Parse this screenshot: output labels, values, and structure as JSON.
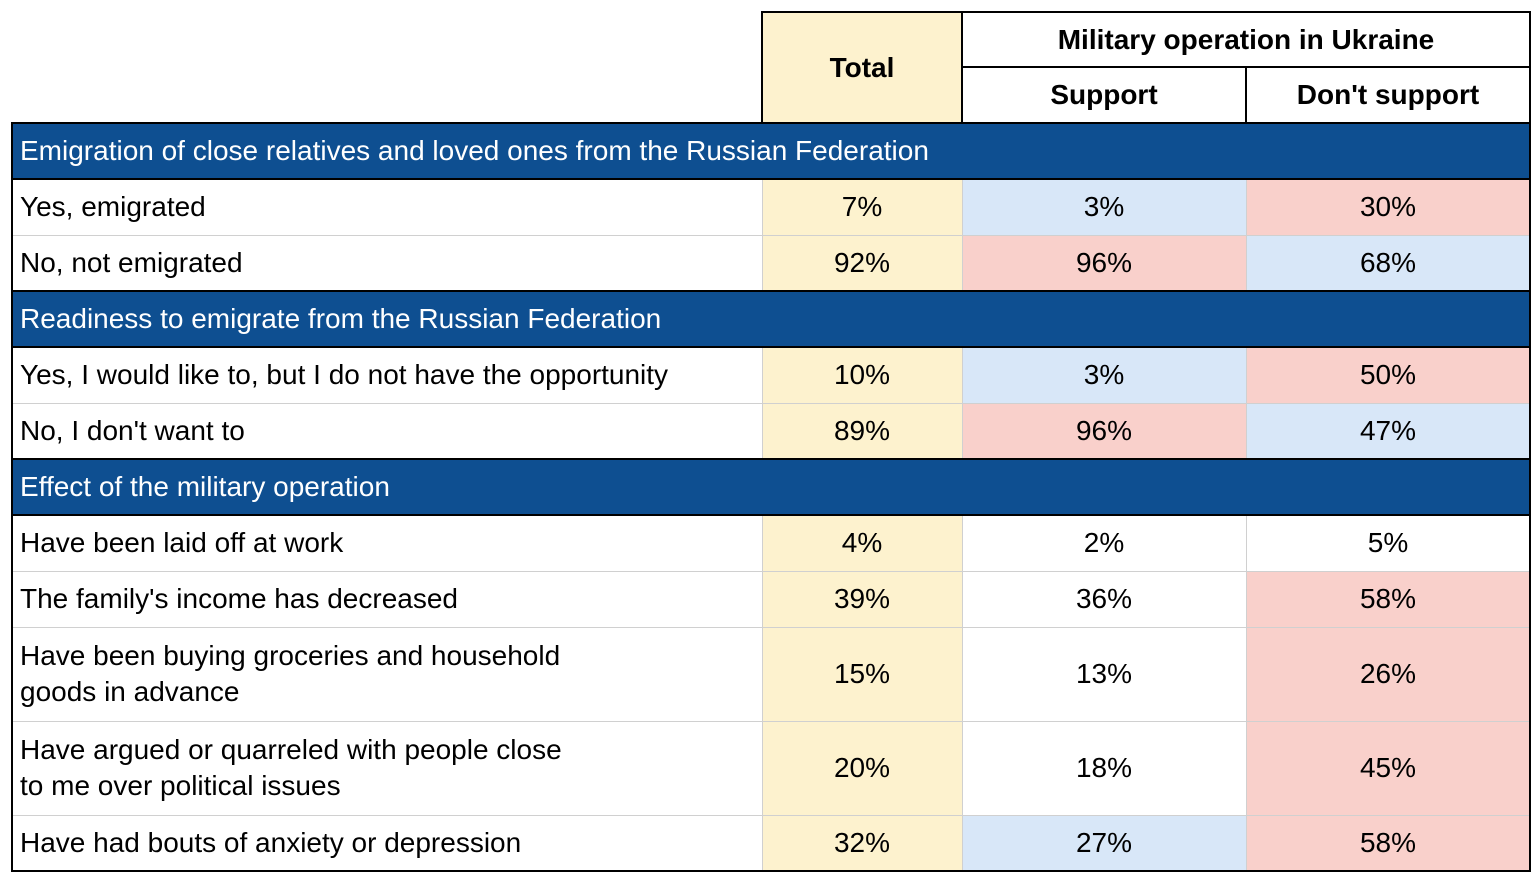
{
  "colors": {
    "section": "#0e4f91",
    "total_bg": "#fdf2ce",
    "blue": "#d8e7f8",
    "red": "#f9d0cb",
    "white": "#ffffff"
  },
  "header": {
    "total": "Total",
    "group": "Military operation in Ukraine",
    "support": "Support",
    "dont_support": "Don't support"
  },
  "chart_data": {
    "type": "table",
    "columns": [
      "Total",
      "Support",
      "Don't support"
    ],
    "sections": [
      {
        "title": "Emigration of close relatives and loved ones from the Russian Federation",
        "rows": [
          {
            "label": "Yes, emigrated",
            "values": [
              "7%",
              "3%",
              "30%"
            ],
            "shade": [
              "total",
              "blue",
              "red"
            ]
          },
          {
            "label": "No, not emigrated",
            "values": [
              "92%",
              "96%",
              "68%"
            ],
            "shade": [
              "total",
              "red",
              "blue"
            ]
          }
        ]
      },
      {
        "title": "Readiness to emigrate from the Russian Federation",
        "rows": [
          {
            "label": "Yes, I would like to, but I do not have the opportunity",
            "values": [
              "10%",
              "3%",
              "50%"
            ],
            "shade": [
              "total",
              "blue",
              "red"
            ]
          },
          {
            "label": "No, I don't want to",
            "values": [
              "89%",
              "96%",
              "47%"
            ],
            "shade": [
              "total",
              "red",
              "blue"
            ]
          }
        ]
      },
      {
        "title": "Effect of the military operation",
        "rows": [
          {
            "label": "Have been laid off at work",
            "values": [
              "4%",
              "2%",
              "5%"
            ],
            "shade": [
              "total",
              "white",
              "white"
            ]
          },
          {
            "label": "The family's income has decreased",
            "values": [
              "39%",
              "36%",
              "58%"
            ],
            "shade": [
              "total",
              "white",
              "red"
            ]
          },
          {
            "label": "Have been buying groceries and household\ngoods in advance",
            "values": [
              "15%",
              "13%",
              "26%"
            ],
            "shade": [
              "total",
              "white",
              "red"
            ]
          },
          {
            "label": "Have argued or quarreled with people close\nto me over political issues",
            "values": [
              "20%",
              "18%",
              "45%"
            ],
            "shade": [
              "total",
              "white",
              "red"
            ]
          },
          {
            "label": "Have had bouts of anxiety or depression",
            "values": [
              "32%",
              "27%",
              "58%"
            ],
            "shade": [
              "total",
              "blue",
              "red"
            ]
          }
        ]
      }
    ]
  }
}
